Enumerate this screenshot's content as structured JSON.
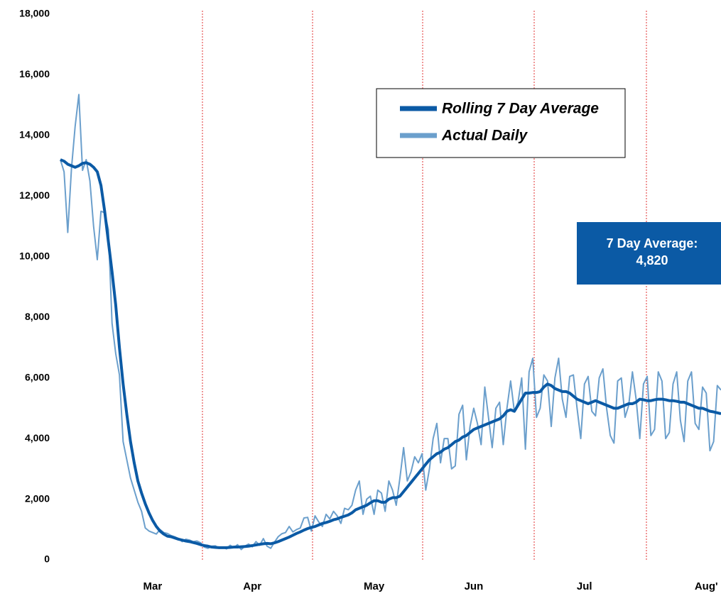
{
  "chart_data": {
    "type": "line",
    "categories": [
      null,
      null,
      null,
      null,
      null,
      null,
      null,
      null,
      null,
      null,
      null,
      null,
      null,
      null,
      null,
      null,
      null,
      null,
      null,
      null,
      null,
      null,
      null,
      null,
      null,
      "Mar",
      null,
      null,
      null,
      null,
      null,
      null,
      null,
      null,
      null,
      null,
      null,
      null,
      null,
      null,
      null,
      null,
      null,
      null,
      null,
      null,
      null,
      null,
      null,
      null,
      null,
      null,
      "Apr",
      null,
      null,
      null,
      null,
      null,
      null,
      null,
      null,
      null,
      null,
      null,
      null,
      null,
      null,
      null,
      null,
      null,
      null,
      null,
      null,
      null,
      null,
      null,
      null,
      null,
      null,
      null,
      null,
      null,
      null,
      null,
      null,
      "May",
      null,
      null,
      null,
      null,
      null,
      null,
      null,
      null,
      null,
      null,
      null,
      null,
      null,
      null,
      null,
      null,
      null,
      null,
      null,
      null,
      null,
      null,
      null,
      null,
      null,
      null,
      "Jun",
      null,
      null,
      null,
      null,
      null,
      null,
      null,
      null,
      null,
      null,
      null,
      null,
      null,
      null,
      null,
      null,
      null,
      null,
      null,
      null,
      null,
      null,
      null,
      null,
      null,
      null,
      null,
      null,
      null,
      "Jul",
      null,
      null,
      null,
      null,
      null,
      null,
      null,
      null,
      null,
      null,
      null,
      null,
      null,
      null,
      null,
      null,
      null,
      null,
      null,
      null,
      null,
      null,
      null,
      null,
      null,
      null,
      null,
      null,
      null,
      null,
      null,
      null,
      "Aug'",
      null,
      null,
      null,
      null
    ],
    "series": [
      {
        "name": "Rolling 7 Day Average",
        "color": "#0b5aa5",
        "width": 4,
        "values": [
          13200,
          13150,
          13050,
          13000,
          12950,
          13000,
          13080,
          13100,
          13050,
          12950,
          12800,
          12350,
          11500,
          10500,
          9500,
          8400,
          7000,
          5800,
          4800,
          3900,
          3200,
          2600,
          2200,
          1850,
          1550,
          1300,
          1100,
          950,
          850,
          780,
          760,
          720,
          680,
          650,
          620,
          600,
          570,
          540,
          500,
          470,
          450,
          420,
          410,
          400,
          400,
          400,
          410,
          420,
          420,
          430,
          440,
          450,
          470,
          490,
          510,
          530,
          540,
          530,
          560,
          600,
          650,
          700,
          750,
          810,
          870,
          920,
          980,
          1030,
          1070,
          1100,
          1150,
          1200,
          1230,
          1270,
          1320,
          1350,
          1400,
          1440,
          1480,
          1550,
          1650,
          1700,
          1750,
          1800,
          1880,
          1950,
          1950,
          1900,
          1900,
          2000,
          2050,
          2050,
          2100,
          2250,
          2400,
          2550,
          2700,
          2850,
          3000,
          3150,
          3300,
          3400,
          3500,
          3550,
          3650,
          3700,
          3800,
          3900,
          3950,
          4050,
          4100,
          4200,
          4300,
          4350,
          4400,
          4450,
          4500,
          4550,
          4600,
          4650,
          4750,
          4900,
          4950,
          4900,
          5100,
          5300,
          5500,
          5500,
          5520,
          5520,
          5550,
          5700,
          5800,
          5750,
          5650,
          5600,
          5550,
          5550,
          5500,
          5400,
          5300,
          5250,
          5200,
          5150,
          5200,
          5250,
          5200,
          5150,
          5100,
          5050,
          5000,
          5000,
          5050,
          5100,
          5150,
          5150,
          5200,
          5300,
          5280,
          5250,
          5250,
          5280,
          5300,
          5300,
          5280,
          5250,
          5250,
          5230,
          5200,
          5200,
          5150,
          5100,
          5050,
          5000,
          5000,
          4950,
          4900,
          4880,
          4850,
          4820
        ]
      },
      {
        "name": "Actual Daily",
        "color": "#6b9fcc",
        "width": 2,
        "values": [
          13200,
          12800,
          10800,
          12900,
          14300,
          15350,
          12850,
          13200,
          12500,
          11000,
          9900,
          11500,
          11450,
          10900,
          7800,
          6800,
          6100,
          3900,
          3300,
          2700,
          2300,
          1900,
          1600,
          1050,
          950,
          900,
          850,
          1000,
          900,
          870,
          800,
          760,
          700,
          600,
          680,
          650,
          600,
          620,
          560,
          420,
          380,
          450,
          460,
          380,
          420,
          360,
          480,
          400,
          500,
          340,
          450,
          520,
          430,
          600,
          480,
          700,
          450,
          380,
          580,
          760,
          860,
          900,
          1100,
          920,
          1000,
          1050,
          1380,
          1400,
          950,
          1450,
          1250,
          1100,
          1500,
          1350,
          1600,
          1450,
          1200,
          1700,
          1650,
          1800,
          2300,
          2600,
          1500,
          2000,
          2100,
          1500,
          2300,
          2200,
          1600,
          2600,
          2300,
          1800,
          2700,
          3700,
          2600,
          2900,
          3400,
          3200,
          3500,
          2300,
          3000,
          4000,
          4500,
          3200,
          4000,
          4000,
          3000,
          3100,
          4800,
          5100,
          3300,
          4400,
          5000,
          4500,
          3800,
          5700,
          4700,
          3700,
          5000,
          5200,
          3800,
          5000,
          5900,
          4900,
          5200,
          6000,
          3650,
          6200,
          6650,
          4700,
          5000,
          6100,
          5900,
          4400,
          6000,
          6650,
          5300,
          4700,
          6050,
          6100,
          5000,
          4000,
          5800,
          6050,
          4900,
          4750,
          6000,
          6300,
          5000,
          4100,
          3850,
          5900,
          6000,
          4700,
          5100,
          6200,
          5300,
          4000,
          5800,
          6050,
          4100,
          4300,
          6200,
          5900,
          4000,
          4200,
          5800,
          6200,
          4600,
          3900,
          5900,
          6200,
          4500,
          4300,
          5700,
          5500,
          3600,
          3900,
          5750,
          5600
        ]
      }
    ],
    "ylim": [
      0,
      18000
    ],
    "yticks": [
      0,
      {
        "value": 2000,
        "label": "2,000"
      },
      {
        "value": 4000,
        "label": "4,000"
      },
      {
        "value": 6000,
        "label": "6,000"
      },
      {
        "value": 8000,
        "label": "8,000"
      },
      {
        "value": 10000,
        "label": "10,000"
      },
      {
        "value": 12000,
        "label": "12,000"
      },
      {
        "value": 14000,
        "label": "14,000"
      },
      {
        "value": 16000,
        "label": "16,000"
      },
      {
        "value": 18000,
        "label": "18,000"
      }
    ],
    "grid": false,
    "legend": "top-right",
    "annotation": {
      "label": "7 Day Average:",
      "value_label": "4,820"
    }
  }
}
